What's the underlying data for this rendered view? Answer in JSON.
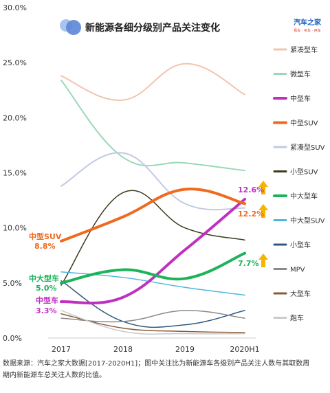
{
  "chart_data": {
    "type": "line",
    "title": "新能源各细分级别产品关注变化",
    "categories": [
      "2017",
      "2018",
      "2019",
      "2020H1"
    ],
    "y_ticks": [
      "0.0%",
      "5.0%",
      "10.0%",
      "15.0%",
      "20.0%",
      "25.0%",
      "30.0%"
    ],
    "ylim": [
      0,
      30
    ],
    "grid": false,
    "legend_position": "right",
    "series": [
      {
        "name": "紧凑型车",
        "color": "#f2c5ad",
        "width": 2,
        "values": [
          23.8,
          21.6,
          24.9,
          22.1
        ]
      },
      {
        "name": "微型车",
        "color": "#9ad8b8",
        "width": 2,
        "values": [
          23.4,
          16.4,
          15.9,
          15.2
        ]
      },
      {
        "name": "中型车",
        "color": "#c030c0",
        "width": 4,
        "values": [
          3.3,
          3.7,
          8.0,
          12.6
        ]
      },
      {
        "name": "中型SUV",
        "color": "#ef6a1e",
        "width": 4,
        "values": [
          8.8,
          11.0,
          13.5,
          12.2
        ]
      },
      {
        "name": "紧凑型SUV",
        "color": "#c3c9e2",
        "width": 2,
        "values": [
          13.8,
          16.8,
          12.2,
          11.8
        ]
      },
      {
        "name": "小型SUV",
        "color": "#3c3a1c",
        "width": 1.5,
        "values": [
          4.8,
          13.2,
          10.0,
          8.9
        ]
      },
      {
        "name": "中大型车",
        "color": "#1db35a",
        "width": 4,
        "values": [
          5.0,
          6.2,
          5.4,
          7.7
        ]
      },
      {
        "name": "中大型SUV",
        "color": "#4fb6dc",
        "width": 1.5,
        "values": [
          6.0,
          5.5,
          4.6,
          3.9
        ]
      },
      {
        "name": "小型车",
        "color": "#33577e",
        "width": 1.5,
        "values": [
          5.2,
          1.5,
          1.2,
          2.5
        ]
      },
      {
        "name": "MPV",
        "color": "#8a8a8a",
        "width": 1.5,
        "values": [
          1.8,
          1.5,
          2.5,
          1.8
        ]
      },
      {
        "name": "大型车",
        "color": "#8a5a36",
        "width": 1.5,
        "values": [
          2.2,
          0.9,
          0.6,
          0.5
        ]
      },
      {
        "name": "跑车",
        "color": "#c9c9cf",
        "width": 1.5,
        "values": [
          2.5,
          0.6,
          0.4,
          0.4
        ]
      }
    ],
    "annotations": [
      {
        "text": "中型SUV",
        "color": "#ef6a1e"
      },
      {
        "text": "8.8%",
        "color": "#ef6a1e"
      },
      {
        "text": "中大型车",
        "color": "#1db35a"
      },
      {
        "text": "5.0%",
        "color": "#1db35a"
      },
      {
        "text": "中型车",
        "color": "#c030c0"
      },
      {
        "text": "3.3%",
        "color": "#c030c0"
      },
      {
        "text": "12.6%",
        "color": "#c030c0"
      },
      {
        "text": "12.2%",
        "color": "#ef6a1e"
      },
      {
        "text": "7.7%",
        "color": "#1db35a"
      }
    ]
  },
  "logo": {
    "name": "汽车之家",
    "tagline": "看车 · 买车 · 用车"
  },
  "footnote": {
    "line1": "数据来源：汽车之家大数据[2017-2020H1]；图中关注比为新能源车各级别产品关注人数与其取数周",
    "line2": "期内新能源车总关注人数的比值。"
  },
  "colors": {
    "arrow": "#f5b400",
    "title_circle_1": "#a9c4ef",
    "title_circle_2": "#5b86d6"
  }
}
